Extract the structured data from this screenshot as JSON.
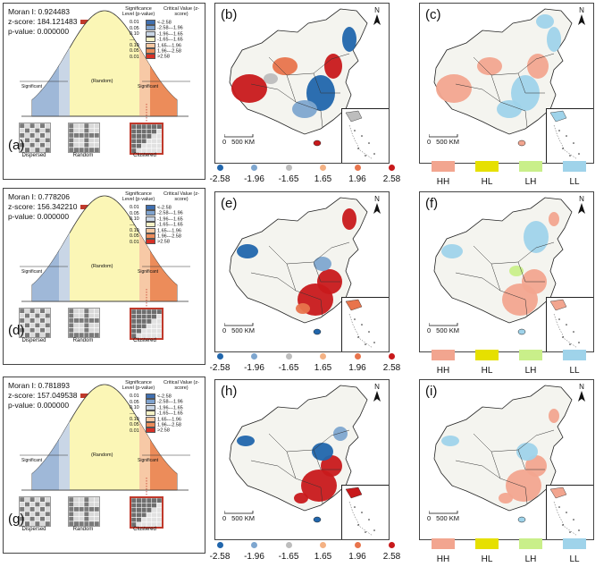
{
  "moran_panels": [
    {
      "label": "(a)",
      "moran_i": "Moran I: 0.924483",
      "z_score": "z-score: 184.121483",
      "p_value": "p-value: 0.000000"
    },
    {
      "label": "(d)",
      "moran_i": "Moran I: 0.778206",
      "z_score": "z-score: 156.342210",
      "p_value": "p-value: 0.000000"
    },
    {
      "label": "(g)",
      "moran_i": "Moran I: 0.781893",
      "z_score": "z-score: 157.049538",
      "p_value": "p-value: 0.000000"
    }
  ],
  "moran_common": {
    "sig_header": "Significance Level (p-value)",
    "crit_header": "Critical Value (z-score)",
    "pvals": [
      "0.01",
      "0.05",
      "0.10",
      "---",
      "0.10",
      "0.05",
      "0.01"
    ],
    "zranges": [
      "<-2.58",
      "-2.58---1.96",
      "-1.96---1.65",
      "-1.65---1.65",
      "1.65---1.96",
      "1.96---2.58",
      ">2.58"
    ],
    "swatch_colors": [
      "#3f6fb0",
      "#7fa3cf",
      "#c9d6e6",
      "#f6f3c6",
      "#f6c7a0",
      "#ec8c5a",
      "#d73027"
    ],
    "random": "(Random)",
    "significant_left": "Significant",
    "significant_right": "Significant",
    "dispersed": "Dispersed",
    "random_thumb": "Random",
    "clustered": "Clustered"
  },
  "hotspot_maps": [
    {
      "label": "(b)"
    },
    {
      "label": "(e)"
    },
    {
      "label": "(h)"
    }
  ],
  "cluster_maps": [
    {
      "label": "(c)"
    },
    {
      "label": "(f)"
    },
    {
      "label": "(i)"
    }
  ],
  "map_common": {
    "north": "N",
    "scale": "500 KM",
    "scale_zero": "0"
  },
  "zscore_legend": [
    {
      "value": "-2.58",
      "color": "#2166ac"
    },
    {
      "value": "-1.96",
      "color": "#7ea6cf"
    },
    {
      "value": "-1.65",
      "color": "#bdbdbd"
    },
    {
      "value": "1.65",
      "color": "#f4b183"
    },
    {
      "value": "1.96",
      "color": "#e8744c"
    },
    {
      "value": "2.58",
      "color": "#c8191b"
    }
  ],
  "cluster_legend": [
    {
      "value": "HH",
      "color": "#f2a58f"
    },
    {
      "value": "HL",
      "color": "#e6e000"
    },
    {
      "value": "LH",
      "color": "#c9ef8a"
    },
    {
      "value": "LL",
      "color": "#9fd3ea"
    }
  ]
}
